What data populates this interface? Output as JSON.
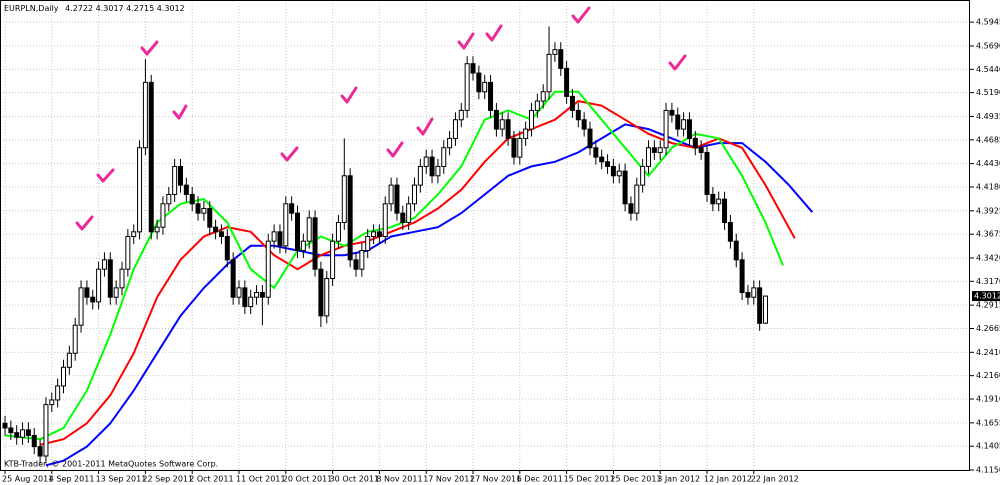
{
  "chart_data": {
    "type": "candlestick",
    "title": "EURPLN,Daily",
    "watermark": "KTB-Trader, © 2001-2011 MetaQuotes Software Corp.",
    "categories": [
      "25 Aug 2011",
      null,
      null,
      null,
      null,
      null,
      null,
      null,
      "4 Sep 2011",
      null,
      null,
      null,
      null,
      null,
      null,
      null,
      "13 Sep 2011",
      null,
      null,
      null,
      null,
      null,
      null,
      null,
      "22 Sep 2011",
      null,
      null,
      null,
      null,
      null,
      null,
      null,
      "2 Oct 2011",
      null,
      null,
      null,
      null,
      null,
      null,
      null,
      "11 Oct 2011",
      null,
      null,
      null,
      null,
      null,
      null,
      null,
      "20 Oct 2011",
      null,
      null,
      null,
      null,
      null,
      null,
      null,
      "30 Oct 2011",
      null,
      null,
      null,
      null,
      null,
      null,
      null,
      "8 Nov 2011",
      null,
      null,
      null,
      null,
      null,
      null,
      null,
      "17 Nov 2011",
      null,
      null,
      null,
      null,
      null,
      null,
      null,
      "27 Nov 2011",
      null,
      null,
      null,
      null,
      null,
      null,
      null,
      "6 Dec 2011",
      null,
      null,
      null,
      null,
      null,
      null,
      null,
      "15 Dec 2011",
      null,
      null,
      null,
      null,
      null,
      null,
      null,
      "25 Dec 2011",
      null,
      null,
      null,
      null,
      null,
      null,
      null,
      "3 Jan 2012",
      null,
      null,
      null,
      null,
      null,
      null,
      null,
      "12 Jan 2012",
      null,
      null,
      null,
      null,
      null,
      null,
      null,
      "22 Jan 2012",
      null,
      null
    ],
    "open": [
      4.165,
      4.16,
      4.155,
      4.15,
      4.158,
      4.152,
      4.14,
      4.13,
      4.185,
      4.19,
      4.205,
      4.225,
      4.24,
      4.27,
      4.31,
      4.3,
      4.295,
      4.33,
      4.34,
      4.3,
      4.31,
      4.33,
      4.365,
      4.37,
      4.46,
      4.53,
      4.37,
      4.375,
      4.4,
      4.41,
      4.44,
      4.42,
      4.41,
      4.4,
      4.39,
      4.395,
      4.375,
      4.37,
      4.365,
      4.34,
      4.3,
      4.31,
      4.29,
      4.3,
      4.305,
      4.3,
      4.36,
      4.37,
      4.355,
      4.4,
      4.39,
      4.35,
      4.36,
      4.385,
      4.33,
      4.28,
      4.32,
      4.36,
      4.38,
      4.43,
      4.34,
      4.33,
      4.35,
      4.365,
      4.37,
      4.365,
      4.4,
      4.42,
      4.39,
      4.38,
      4.4,
      4.42,
      4.44,
      4.45,
      4.43,
      4.44,
      4.46,
      4.47,
      4.49,
      4.5,
      4.55,
      4.54,
      4.52,
      4.53,
      4.5,
      4.48,
      4.49,
      4.47,
      4.45,
      4.47,
      4.48,
      4.5,
      4.51,
      4.52,
      4.56,
      4.565,
      4.545,
      4.515,
      4.5,
      4.49,
      4.48,
      4.46,
      4.45,
      4.445,
      4.44,
      4.43,
      4.435,
      4.4,
      4.39,
      4.42,
      4.44,
      4.46,
      4.455,
      4.46,
      4.5,
      4.495,
      4.48,
      4.49,
      4.47,
      4.46,
      4.455,
      4.41,
      4.4,
      4.405,
      4.38,
      4.36,
      4.34,
      4.305,
      4.3,
      4.31,
      4.2722
    ],
    "high": [
      4.173,
      4.168,
      4.163,
      4.166,
      4.166,
      4.16,
      4.148,
      4.193,
      4.198,
      4.213,
      4.233,
      4.248,
      4.278,
      4.318,
      4.318,
      4.308,
      4.338,
      4.348,
      4.348,
      4.318,
      4.338,
      4.373,
      4.378,
      4.468,
      4.555,
      4.538,
      4.383,
      4.408,
      4.418,
      4.448,
      4.448,
      4.428,
      4.418,
      4.408,
      4.403,
      4.403,
      4.383,
      4.378,
      4.373,
      4.348,
      4.318,
      4.318,
      4.308,
      4.313,
      4.313,
      4.368,
      4.378,
      4.378,
      4.408,
      4.408,
      4.398,
      4.368,
      4.393,
      4.393,
      4.338,
      4.328,
      4.368,
      4.388,
      4.47,
      4.438,
      4.348,
      4.358,
      4.373,
      4.378,
      4.378,
      4.408,
      4.428,
      4.428,
      4.398,
      4.408,
      4.428,
      4.448,
      4.458,
      4.458,
      4.448,
      4.468,
      4.478,
      4.498,
      4.508,
      4.558,
      4.558,
      4.548,
      4.538,
      4.538,
      4.508,
      4.498,
      4.498,
      4.478,
      4.478,
      4.488,
      4.508,
      4.518,
      4.528,
      4.59,
      4.573,
      4.573,
      4.553,
      4.523,
      4.508,
      4.498,
      4.488,
      4.468,
      4.458,
      4.453,
      4.448,
      4.443,
      4.443,
      4.408,
      4.428,
      4.448,
      4.468,
      4.468,
      4.468,
      4.508,
      4.508,
      4.503,
      4.498,
      4.498,
      4.478,
      4.468,
      4.463,
      4.418,
      4.413,
      4.413,
      4.388,
      4.368,
      4.348,
      4.313,
      4.318,
      4.318,
      4.3017
    ],
    "low": [
      4.152,
      4.147,
      4.142,
      4.142,
      4.144,
      4.132,
      4.122,
      4.122,
      4.177,
      4.182,
      4.197,
      4.217,
      4.232,
      4.262,
      4.292,
      4.287,
      4.287,
      4.322,
      4.292,
      4.292,
      4.302,
      4.322,
      4.357,
      4.362,
      4.452,
      4.362,
      4.362,
      4.367,
      4.392,
      4.402,
      4.412,
      4.402,
      4.392,
      4.382,
      4.382,
      4.367,
      4.362,
      4.357,
      4.332,
      4.292,
      4.292,
      4.282,
      4.282,
      4.292,
      4.27,
      4.292,
      4.352,
      4.347,
      4.347,
      4.382,
      4.342,
      4.342,
      4.352,
      4.322,
      4.268,
      4.272,
      4.312,
      4.352,
      4.372,
      4.332,
      4.322,
      4.322,
      4.342,
      4.357,
      4.357,
      4.357,
      4.392,
      4.382,
      4.372,
      4.372,
      4.392,
      4.412,
      4.432,
      4.422,
      4.422,
      4.432,
      4.452,
      4.462,
      4.482,
      4.492,
      4.532,
      4.512,
      4.512,
      4.492,
      4.472,
      4.472,
      4.462,
      4.442,
      4.442,
      4.462,
      4.472,
      4.492,
      4.502,
      4.512,
      4.552,
      4.537,
      4.507,
      4.492,
      4.482,
      4.472,
      4.452,
      4.442,
      4.437,
      4.432,
      4.422,
      4.422,
      4.392,
      4.382,
      4.382,
      4.412,
      4.432,
      4.447,
      4.447,
      4.452,
      4.487,
      4.472,
      4.472,
      4.462,
      4.452,
      4.447,
      4.402,
      4.392,
      4.392,
      4.372,
      4.352,
      4.332,
      4.297,
      4.292,
      4.292,
      4.264,
      4.2715
    ],
    "close": [
      4.16,
      4.155,
      4.15,
      4.158,
      4.152,
      4.14,
      4.13,
      4.185,
      4.19,
      4.205,
      4.225,
      4.24,
      4.27,
      4.31,
      4.3,
      4.295,
      4.33,
      4.34,
      4.3,
      4.31,
      4.33,
      4.365,
      4.37,
      4.46,
      4.53,
      4.37,
      4.375,
      4.4,
      4.41,
      4.44,
      4.42,
      4.41,
      4.4,
      4.39,
      4.395,
      4.375,
      4.37,
      4.365,
      4.34,
      4.3,
      4.31,
      4.29,
      4.3,
      4.305,
      4.3,
      4.36,
      4.37,
      4.355,
      4.4,
      4.39,
      4.35,
      4.36,
      4.385,
      4.33,
      4.28,
      4.32,
      4.36,
      4.38,
      4.43,
      4.34,
      4.33,
      4.35,
      4.365,
      4.37,
      4.365,
      4.4,
      4.42,
      4.39,
      4.38,
      4.4,
      4.42,
      4.44,
      4.45,
      4.43,
      4.44,
      4.46,
      4.47,
      4.49,
      4.5,
      4.55,
      4.54,
      4.52,
      4.53,
      4.5,
      4.48,
      4.49,
      4.47,
      4.45,
      4.47,
      4.48,
      4.5,
      4.51,
      4.52,
      4.56,
      4.565,
      4.545,
      4.515,
      4.5,
      4.49,
      4.48,
      4.46,
      4.45,
      4.445,
      4.44,
      4.43,
      4.435,
      4.4,
      4.39,
      4.42,
      4.44,
      4.46,
      4.455,
      4.46,
      4.5,
      4.495,
      4.48,
      4.49,
      4.47,
      4.46,
      4.455,
      4.41,
      4.4,
      4.405,
      4.38,
      4.36,
      4.34,
      4.305,
      4.3,
      4.31,
      4.272,
      4.3012
    ],
    "lines": [
      {
        "color": "#0000ff",
        "x": [
          7,
          10,
          14,
          18,
          22,
          26,
          30,
          34,
          38,
          42,
          46,
          50,
          54,
          58,
          62,
          66,
          70,
          74,
          78,
          82,
          86,
          90,
          94,
          98,
          102,
          106,
          110,
          114,
          118,
          122,
          126,
          130,
          134,
          138
        ],
        "values": [
          4.12,
          4.125,
          4.14,
          4.165,
          4.2,
          4.24,
          4.28,
          4.31,
          4.335,
          4.355,
          4.355,
          4.35,
          4.345,
          4.345,
          4.35,
          4.365,
          4.37,
          4.375,
          4.39,
          4.41,
          4.43,
          4.44,
          4.445,
          4.455,
          4.47,
          4.485,
          4.48,
          4.47,
          4.46,
          4.465,
          4.465,
          4.445,
          4.42,
          4.391
        ]
      },
      {
        "color": "#ff0000",
        "x": [
          6,
          10,
          14,
          18,
          22,
          26,
          30,
          34,
          38,
          42,
          46,
          50,
          54,
          58,
          62,
          66,
          70,
          74,
          78,
          82,
          86,
          90,
          94,
          98,
          102,
          106,
          110,
          114,
          118,
          122,
          126,
          130,
          135
        ],
        "values": [
          4.142,
          4.148,
          4.165,
          4.195,
          4.24,
          4.3,
          4.34,
          4.365,
          4.375,
          4.37,
          4.345,
          4.33,
          4.345,
          4.355,
          4.36,
          4.37,
          4.38,
          4.395,
          4.415,
          4.445,
          4.47,
          4.48,
          4.49,
          4.51,
          4.505,
          4.49,
          4.475,
          4.465,
          4.46,
          4.47,
          4.46,
          4.42,
          4.363
        ]
      },
      {
        "color": "#00ff00",
        "x": [
          0,
          6,
          10,
          14,
          18,
          22,
          26,
          30,
          34,
          38,
          42,
          46,
          50,
          54,
          58,
          62,
          66,
          70,
          74,
          78,
          82,
          86,
          90,
          94,
          98,
          102,
          106,
          110,
          114,
          118,
          122,
          126,
          130,
          133
        ],
        "values": [
          4.152,
          4.148,
          4.16,
          4.2,
          4.26,
          4.33,
          4.38,
          4.4,
          4.405,
          4.38,
          4.33,
          4.31,
          4.35,
          4.365,
          4.355,
          4.37,
          4.375,
          4.385,
          4.41,
          4.44,
          4.49,
          4.5,
          4.49,
          4.52,
          4.52,
          4.49,
          4.46,
          4.43,
          4.46,
          4.475,
          4.47,
          4.43,
          4.38,
          4.334
        ]
      }
    ],
    "ylim": [
      4.115,
      4.6182
    ],
    "yticks": [
      {
        "value": 4.5945,
        "label": "4.5945"
      },
      {
        "value": 4.569,
        "label": "4.5690"
      },
      {
        "value": 4.544,
        "label": "4.5440"
      },
      {
        "value": 4.519,
        "label": "4.5190"
      },
      {
        "value": 4.4935,
        "label": "4.4935"
      },
      {
        "value": 4.4685,
        "label": "4.4685"
      },
      {
        "value": 4.443,
        "label": "4.4430"
      },
      {
        "value": 4.418,
        "label": "4.4180"
      },
      {
        "value": 4.3925,
        "label": "4.3925"
      },
      {
        "value": 4.3675,
        "label": "4.3675"
      },
      {
        "value": 4.342,
        "label": "4.3420"
      },
      {
        "value": 4.317,
        "label": "4.3170"
      },
      {
        "value": 4.2915,
        "label": "4.2915"
      },
      {
        "value": 4.2665,
        "label": "4.2665"
      },
      {
        "value": 4.241,
        "label": "4.2410"
      },
      {
        "value": 4.216,
        "label": "4.2160"
      },
      {
        "value": 4.191,
        "label": "4.1910"
      },
      {
        "value": 4.1655,
        "label": "4.1655"
      },
      {
        "value": 4.1405,
        "label": "4.1405"
      },
      {
        "value": 4.115,
        "label": "4.1150"
      }
    ],
    "grid": true,
    "up_color": "#ffffff",
    "down_color": "#000000"
  }
}
